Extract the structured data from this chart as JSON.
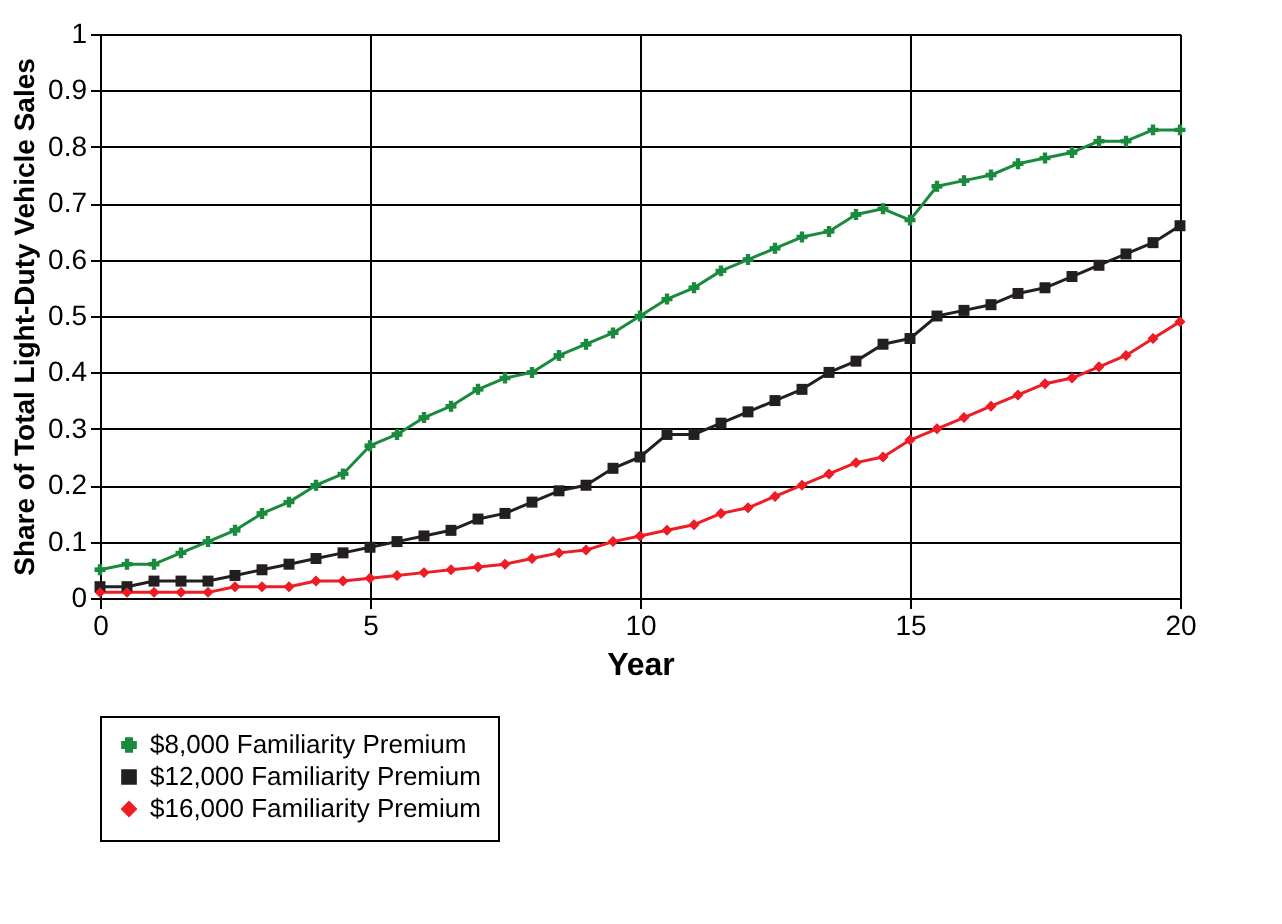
{
  "chart_data": {
    "type": "line",
    "xlabel": "Year",
    "ylabel": "Share of Total Light-Duty Vehicle Sales",
    "x": [
      0,
      0.5,
      1,
      1.5,
      2,
      2.5,
      3,
      3.5,
      4,
      4.5,
      5,
      5.5,
      6,
      6.5,
      7,
      7.5,
      8,
      8.5,
      9,
      9.5,
      10,
      10.5,
      11,
      11.5,
      12,
      12.5,
      13,
      13.5,
      14,
      14.5,
      15,
      15.5,
      16,
      16.5,
      17,
      17.5,
      18,
      18.5,
      19,
      19.5,
      20
    ],
    "series": [
      {
        "name": "$8,000 Familiarity Premium",
        "color": "#1a8a3e",
        "marker": "cross",
        "values": [
          0.05,
          0.06,
          0.06,
          0.08,
          0.1,
          0.12,
          0.15,
          0.17,
          0.2,
          0.22,
          0.27,
          0.29,
          0.32,
          0.34,
          0.37,
          0.39,
          0.4,
          0.43,
          0.45,
          0.47,
          0.5,
          0.53,
          0.55,
          0.58,
          0.6,
          0.62,
          0.64,
          0.65,
          0.68,
          0.69,
          0.67,
          0.73,
          0.74,
          0.75,
          0.77,
          0.78,
          0.79,
          0.81,
          0.81,
          0.83,
          0.83
        ]
      },
      {
        "name": "$12,000 Familiarity Premium",
        "color": "#231f20",
        "marker": "square",
        "values": [
          0.02,
          0.02,
          0.03,
          0.03,
          0.03,
          0.04,
          0.05,
          0.06,
          0.07,
          0.08,
          0.09,
          0.1,
          0.11,
          0.12,
          0.14,
          0.15,
          0.17,
          0.19,
          0.2,
          0.23,
          0.25,
          0.29,
          0.29,
          0.31,
          0.33,
          0.35,
          0.37,
          0.4,
          0.42,
          0.45,
          0.46,
          0.5,
          0.51,
          0.52,
          0.54,
          0.55,
          0.57,
          0.59,
          0.61,
          0.63,
          0.66
        ]
      },
      {
        "name": "$16,000 Familiarity Premium",
        "color": "#ee1c25",
        "marker": "diamond",
        "values": [
          0.01,
          0.01,
          0.01,
          0.01,
          0.01,
          0.02,
          0.02,
          0.02,
          0.03,
          0.03,
          0.035,
          0.04,
          0.045,
          0.05,
          0.055,
          0.06,
          0.07,
          0.08,
          0.085,
          0.1,
          0.11,
          0.12,
          0.13,
          0.15,
          0.16,
          0.18,
          0.2,
          0.22,
          0.24,
          0.25,
          0.28,
          0.3,
          0.32,
          0.34,
          0.36,
          0.38,
          0.39,
          0.41,
          0.43,
          0.46,
          0.49
        ]
      }
    ],
    "xlim": [
      0,
      20
    ],
    "xticks": [
      0,
      5,
      10,
      15,
      20
    ],
    "ylim": [
      0,
      1
    ],
    "yticks": [
      0,
      0.1,
      0.2,
      0.3,
      0.4,
      0.5,
      0.6,
      0.7,
      0.8,
      0.9,
      1
    ],
    "grid": true,
    "legend": "bottom",
    "line_style": "solid"
  }
}
